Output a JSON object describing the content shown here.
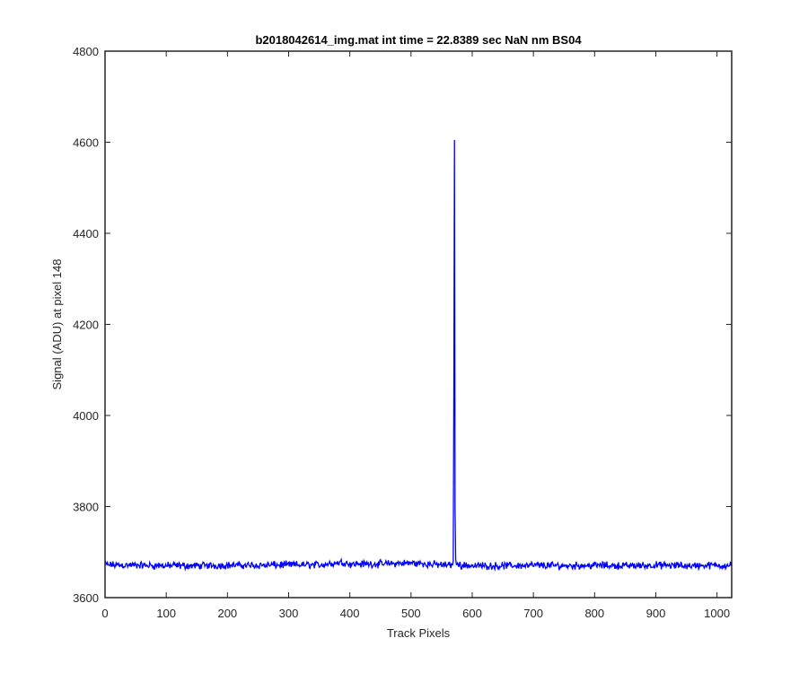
{
  "chart_data": {
    "type": "line",
    "title": "b2018042614_img.mat int time = 22.8389 sec  NaN nm BS04",
    "xlabel": "Track Pixels",
    "ylabel": "Signal (ADU) at pixel 148",
    "xlim": [
      0,
      1024
    ],
    "ylim": [
      3600,
      4800
    ],
    "xticks": [
      0,
      100,
      200,
      300,
      400,
      500,
      600,
      700,
      800,
      900,
      1000
    ],
    "yticks": [
      3600,
      3800,
      4000,
      4200,
      4400,
      4600,
      4800
    ],
    "grid": false,
    "legend": "none",
    "series": [
      {
        "color": "#0000ff",
        "baseline": 3672,
        "noise_amplitude": 10,
        "x": [
          0,
          50,
          100,
          150,
          200,
          250,
          300,
          350,
          390,
          400,
          450,
          500,
          550,
          565,
          569,
          570,
          571,
          572,
          573,
          574,
          575,
          600,
          650,
          700,
          750,
          800,
          850,
          900,
          950,
          1000,
          1023
        ],
        "y": [
          3672,
          3671,
          3670,
          3670,
          3671,
          3671,
          3672,
          3672,
          3678,
          3674,
          3674,
          3676,
          3672,
          3671,
          3680,
          4068,
          4605,
          3790,
          3685,
          3673,
          3672,
          3670,
          3670,
          3671,
          3670,
          3671,
          3670,
          3671,
          3670,
          3671,
          3671
        ]
      }
    ]
  }
}
